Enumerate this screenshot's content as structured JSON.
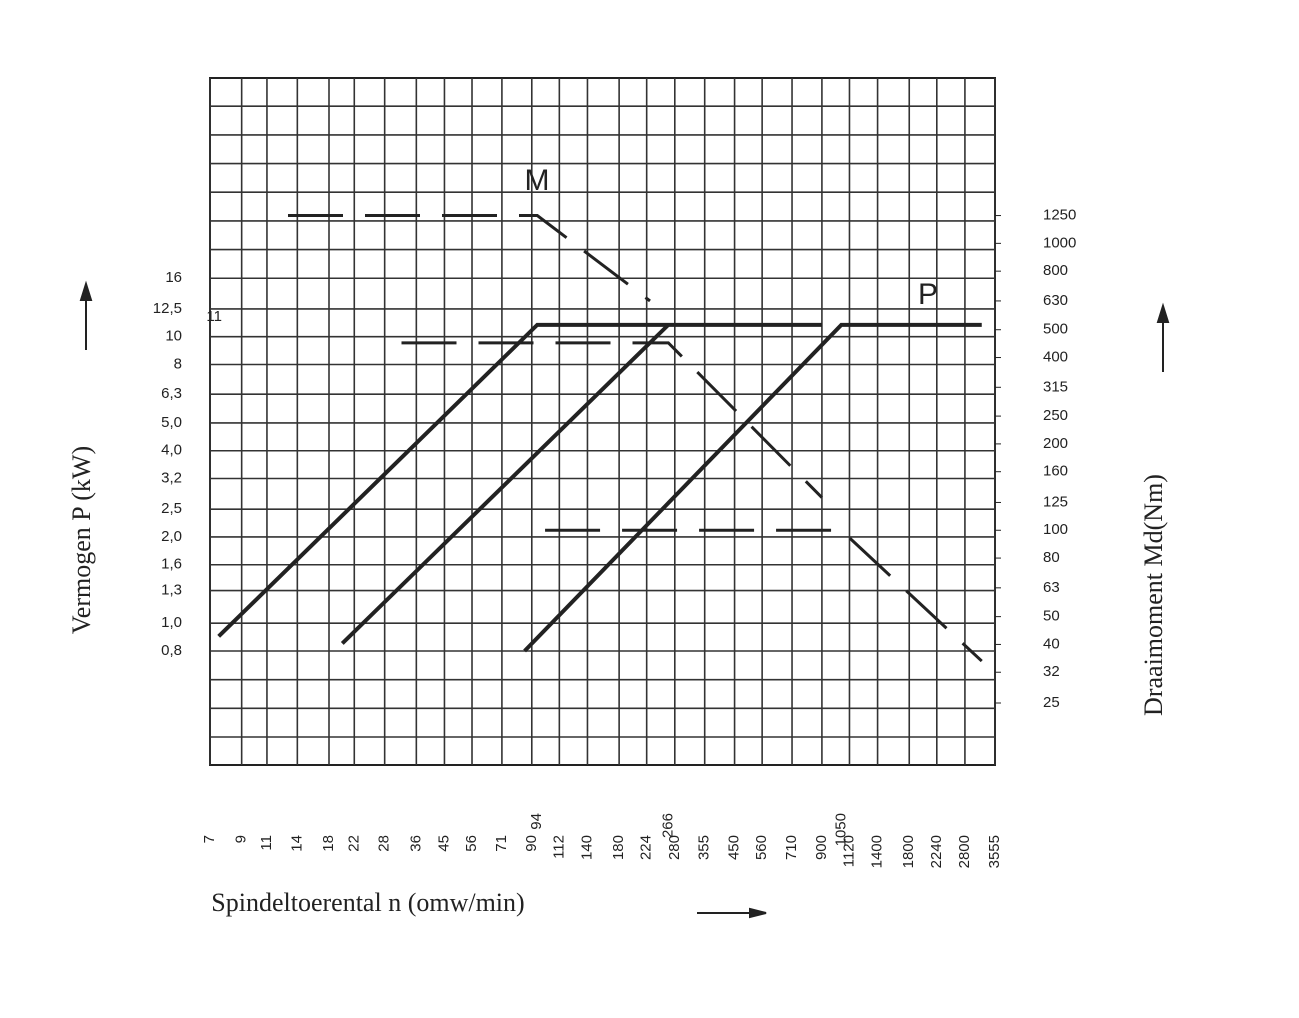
{
  "chart_data": {
    "type": "line",
    "xlabel": "Spindeltoerental n (omw/min)",
    "ylabel": "Vermogen P (kW)",
    "y2label": "Draaimoment Md(Nm)",
    "xscale": "log",
    "yscale": "log",
    "y2scale": "log",
    "xlim": [
      7,
      3555
    ],
    "xticks": [
      7,
      9,
      11,
      14,
      18,
      22,
      28,
      36,
      45,
      56,
      71,
      90,
      112,
      140,
      180,
      224,
      280,
      355,
      450,
      560,
      710,
      900,
      1120,
      1400,
      1800,
      2240,
      2800,
      3555
    ],
    "xmarks": [
      94,
      266,
      1050
    ],
    "ylim": [
      0.32,
      80
    ],
    "yticks": [
      16,
      {
        "value": 12.5,
        "label": "12,5"
      },
      10,
      8,
      {
        "value": 6.3,
        "label": "6,3"
      },
      {
        "value": 5.0,
        "label": "5,0"
      },
      {
        "value": 4.0,
        "label": "4,0"
      },
      {
        "value": 3.2,
        "label": "3,2"
      },
      {
        "value": 2.5,
        "label": "2,5"
      },
      {
        "value": 2.0,
        "label": "2,0"
      },
      {
        "value": 1.6,
        "label": "1,6"
      },
      {
        "value": 1.3,
        "label": "1,3"
      },
      {
        "value": 1.0,
        "label": "1,0"
      },
      {
        "value": 0.8,
        "label": "0,8"
      }
    ],
    "ymarks": [
      11
    ],
    "y2lim": [
      15.2,
      3770
    ],
    "y2ticks": [
      1250,
      1000,
      800,
      630,
      500,
      400,
      315,
      250,
      200,
      160,
      125,
      100,
      80,
      63,
      50,
      40,
      32,
      25
    ],
    "grid": true,
    "series": [
      {
        "color": "#222222",
        "style": "solid",
        "x": [
          7.5,
          94,
          900
        ],
        "values": [
          0.9,
          11,
          11
        ]
      },
      {
        "color": "#222222",
        "style": "solid",
        "x": [
          20,
          266
        ],
        "values": [
          0.85,
          11
        ]
      },
      {
        "color": "#222222",
        "style": "solid",
        "x": [
          85,
          1050,
          3200
        ],
        "values": [
          0.8,
          11,
          11
        ]
      },
      {
        "color": "#222222",
        "style": "dashed",
        "axis": "y2",
        "x": [
          13,
          94,
          230
        ],
        "values": [
          1250,
          1250,
          630
        ]
      },
      {
        "color": "#222222",
        "style": "dashed",
        "axis": "y2",
        "x": [
          32,
          266,
          900
        ],
        "values": [
          450,
          450,
          130
        ]
      },
      {
        "color": "#222222",
        "style": "dashed",
        "axis": "y2",
        "x": [
          100,
          1050,
          3200
        ],
        "values": [
          100,
          100,
          35
        ]
      }
    ],
    "annotations": [
      {
        "text": "M"
      },
      {
        "text": "P"
      }
    ]
  }
}
